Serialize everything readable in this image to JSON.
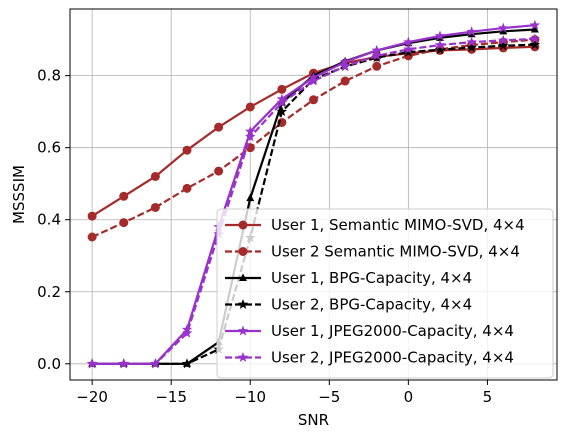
{
  "chart_data": {
    "type": "line",
    "xlabel": "SNR",
    "ylabel": "MSSSIM",
    "xlim": [
      -21.4,
      9.4
    ],
    "ylim": [
      -0.045,
      0.985
    ],
    "x_ticks": [
      -20,
      -15,
      -10,
      -5,
      0,
      5
    ],
    "x_tick_labels": [
      "−20",
      "−15",
      "−10",
      "−5",
      "0",
      "5"
    ],
    "y_ticks": [
      0.0,
      0.2,
      0.4,
      0.6,
      0.8
    ],
    "y_tick_labels": [
      "0.0",
      "0.2",
      "0.4",
      "0.6",
      "0.8"
    ],
    "grid": true,
    "legend_position": "lower-right",
    "x": [
      -20,
      -18,
      -16,
      -14,
      -12,
      -10,
      -8,
      -6,
      -4,
      -2,
      0,
      2,
      4,
      6,
      8
    ],
    "series": [
      {
        "name": "User 1, Semantic MIMO-SVD, 4×4",
        "color": "#a52a2a",
        "linestyle": "solid",
        "marker": "circle",
        "values": [
          0.41,
          0.465,
          0.52,
          0.593,
          0.657,
          0.713,
          0.762,
          0.807,
          0.835,
          0.852,
          0.862,
          0.87,
          0.873,
          0.877,
          0.88
        ]
      },
      {
        "name": "User 2 Semantic MIMO-SVD, 4×4",
        "color": "#a52a2a",
        "linestyle": "dashed",
        "marker": "circle",
        "values": [
          0.352,
          0.392,
          0.434,
          0.487,
          0.535,
          0.6,
          0.67,
          0.733,
          0.785,
          0.826,
          0.855,
          0.873,
          0.885,
          0.893,
          0.9
        ]
      },
      {
        "name": "User 1, BPG-Capacity, 4×4",
        "color": "#000000",
        "linestyle": "solid",
        "marker": "triangle",
        "values": [
          0.0,
          0.0,
          0.0,
          0.0,
          0.06,
          0.46,
          0.725,
          0.8,
          0.84,
          0.87,
          0.89,
          0.905,
          0.915,
          0.923,
          0.928
        ]
      },
      {
        "name": "User 2, BPG-Capacity, 4×4",
        "color": "#000000",
        "linestyle": "dashed",
        "marker": "star",
        "values": [
          0.0,
          0.0,
          0.0,
          0.0,
          0.04,
          0.35,
          0.7,
          0.79,
          0.825,
          0.85,
          0.865,
          0.872,
          0.878,
          0.883,
          0.886
        ]
      },
      {
        "name": "User 1, JPEG2000-Capacity, 4×4",
        "color": "#9932cc",
        "linestyle": "solid",
        "marker": "star",
        "values": [
          0.0,
          0.0,
          0.0,
          0.095,
          0.38,
          0.645,
          0.735,
          0.795,
          0.838,
          0.87,
          0.893,
          0.91,
          0.922,
          0.932,
          0.94
        ]
      },
      {
        "name": "User 2, JPEG2000-Capacity, 4×4",
        "color": "#9932cc",
        "linestyle": "dashed",
        "marker": "star",
        "values": [
          0.0,
          0.0,
          0.0,
          0.085,
          0.36,
          0.63,
          0.725,
          0.785,
          0.826,
          0.855,
          0.873,
          0.885,
          0.893,
          0.898,
          0.902
        ]
      }
    ]
  }
}
